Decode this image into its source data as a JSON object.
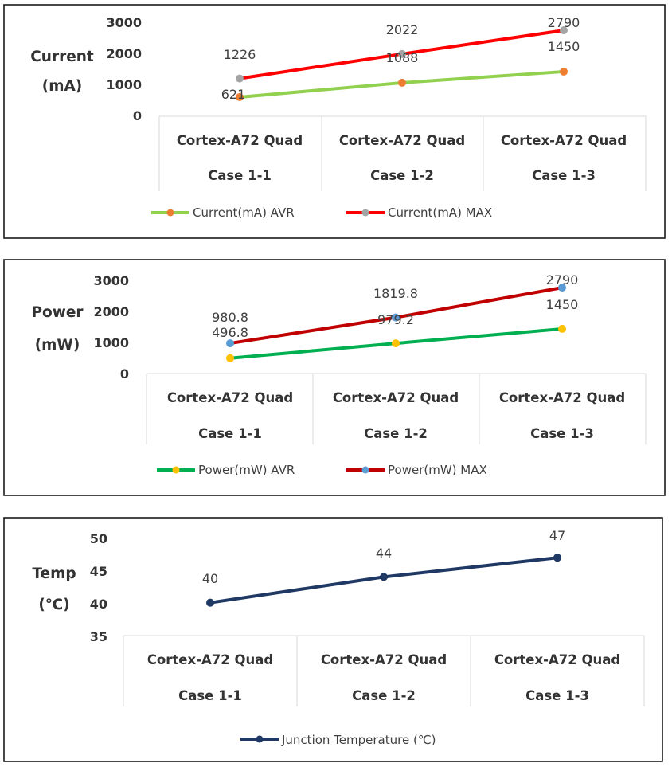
{
  "chart_data": [
    {
      "type": "line",
      "ylabel_lines": [
        "Current",
        "(mA)"
      ],
      "categories": [
        [
          "Cortex-A72 Quad",
          "Case 1-1"
        ],
        [
          "Cortex-A72 Quad",
          "Case 1-2"
        ],
        [
          "Cortex-A72 Quad",
          "Case 1-3"
        ]
      ],
      "ylim": [
        0,
        3000
      ],
      "yticks": [
        "0",
        "1000",
        "2000",
        "3000"
      ],
      "series": [
        {
          "name": "Current(mA) AVR",
          "values": [
            621,
            1088,
            1450
          ],
          "labels": [
            "621",
            "1088",
            "1450"
          ],
          "line_color": "#92d050",
          "marker_color": "#ed7d31"
        },
        {
          "name": "Current(mA) MAX",
          "values": [
            1226,
            2022,
            2790
          ],
          "labels": [
            "1226",
            "2022",
            "2790"
          ],
          "line_color": "#ff0000",
          "marker_color": "#a5a5a5"
        }
      ],
      "legend_position": "bottom"
    },
    {
      "type": "line",
      "ylabel_lines": [
        "Power",
        "(mW)"
      ],
      "categories": [
        [
          "Cortex-A72 Quad",
          "Case 1-1"
        ],
        [
          "Cortex-A72 Quad",
          "Case 1-2"
        ],
        [
          "Cortex-A72 Quad",
          "Case 1-3"
        ]
      ],
      "ylim": [
        0,
        3000
      ],
      "yticks": [
        "0",
        "1000",
        "2000",
        "3000"
      ],
      "series": [
        {
          "name": "Power(mW) AVR",
          "values": [
            496.8,
            979.2,
            1450
          ],
          "labels": [
            "496.8",
            "979.2",
            "1450"
          ],
          "line_color": "#00b050",
          "marker_color": "#ffc000"
        },
        {
          "name": "Power(mW) MAX",
          "values": [
            980.8,
            1819.8,
            2790
          ],
          "labels": [
            "980.8",
            "1819.8",
            "2790"
          ],
          "line_color": "#c00000",
          "marker_color": "#5b9bd5"
        }
      ],
      "legend_position": "bottom"
    },
    {
      "type": "line",
      "ylabel_lines": [
        "Temp",
        "(℃)"
      ],
      "categories": [
        [
          "Cortex-A72 Quad",
          "Case 1-1"
        ],
        [
          "Cortex-A72 Quad",
          "Case 1-2"
        ],
        [
          "Cortex-A72 Quad",
          "Case 1-3"
        ]
      ],
      "ylim": [
        35,
        50
      ],
      "yticks": [
        "35",
        "40",
        "45",
        "50"
      ],
      "series": [
        {
          "name": "Junction Temperature (℃)",
          "values": [
            40,
            44,
            47
          ],
          "labels": [
            "40",
            "44",
            "47"
          ],
          "line_color": "#1f3864",
          "marker_color": "#1f3864"
        }
      ],
      "legend_position": "bottom"
    }
  ]
}
